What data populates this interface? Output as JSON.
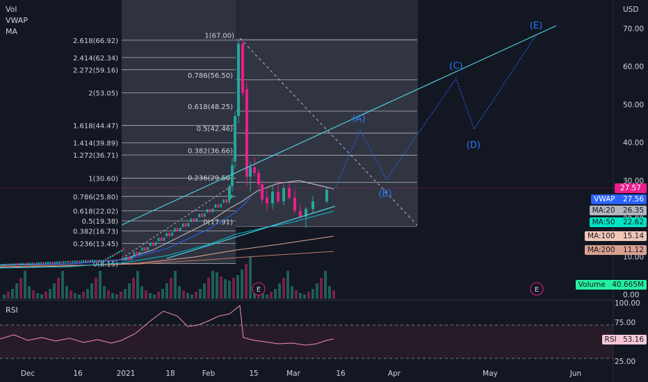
{
  "legend": {
    "vol": "Vol",
    "vwap": "VWAP",
    "ma": "MA",
    "rsi": "RSI"
  },
  "currency": "USD",
  "price_axis_ticks": [
    "70.00",
    "60.00",
    "50.00",
    "40.00",
    "30.00",
    "20.00",
    "10.00",
    "0.00"
  ],
  "rsi_axis_ticks": [
    "100.00",
    "75.00",
    "25.00"
  ],
  "time_axis": [
    "Dec",
    "16",
    "2021",
    "18",
    "Feb",
    "15",
    "Mar",
    "16",
    "Apr",
    "May",
    "Jun"
  ],
  "badges": {
    "last_price": "27.57",
    "vwap_label": "VWAP",
    "vwap_value": "27.56",
    "ma20_label": "MA:20",
    "ma20_value": "26.35",
    "ma50_label": "MA:50",
    "ma50_value": "22.62",
    "ma100_label": "MA:100",
    "ma100_value": "15.14",
    "ma200_label": "MA:200",
    "ma200_value": "11.12",
    "volume_label": "Volume",
    "volume_value": "40.665M",
    "rsi_label": "RSI",
    "rsi_value": "53.16"
  },
  "colors": {
    "background": "#131722",
    "up": "#26a69a",
    "down": "#e91e8c",
    "wave_projection": "#2962ff",
    "channel": "#4dd0e1",
    "fib_line": "#b2b5be",
    "vwap": "#2962ff",
    "ma20": "#b2b5be",
    "ma50": "#00bcd4",
    "ma100": "#e0a890",
    "ma200": "#c67766",
    "rsi_line": "#f48fb1",
    "last_price": "#e91e8c",
    "volume_badge": "#26f0a0"
  },
  "chart_data": [
    {
      "type": "candlestick",
      "y_axis": {
        "range": [
          0,
          74
        ],
        "unit": "USD"
      },
      "candles": [
        {
          "t": "2021-01-27",
          "o": 25.0,
          "h": 29.0,
          "l": 24.0,
          "c": 28.5
        },
        {
          "t": "2021-01-29",
          "o": 28.5,
          "h": 36.0,
          "l": 27.0,
          "c": 34.0
        },
        {
          "t": "2021-02-01",
          "o": 35.0,
          "h": 48.0,
          "l": 33.0,
          "c": 47.0
        },
        {
          "t": "2021-02-02",
          "o": 47.0,
          "h": 67.0,
          "l": 45.0,
          "c": 66.0
        },
        {
          "t": "2021-02-03",
          "o": 66.0,
          "h": 67.0,
          "l": 52.0,
          "c": 53.0
        },
        {
          "t": "2021-02-04",
          "o": 54.0,
          "h": 56.0,
          "l": 28.5,
          "c": 31.0
        },
        {
          "t": "2021-02-05",
          "o": 31.0,
          "h": 35.0,
          "l": 27.0,
          "c": 33.5
        },
        {
          "t": "2021-02-08",
          "o": 33.5,
          "h": 36.0,
          "l": 31.0,
          "c": 32.0
        },
        {
          "t": "2021-02-09",
          "o": 32.0,
          "h": 33.0,
          "l": 28.0,
          "c": 29.0
        },
        {
          "t": "2021-02-11",
          "o": 29.0,
          "h": 30.0,
          "l": 24.0,
          "c": 25.0
        },
        {
          "t": "2021-02-16",
          "o": 25.5,
          "h": 27.5,
          "l": 22.0,
          "c": 24.0
        },
        {
          "t": "2021-02-18",
          "o": 24.0,
          "h": 28.5,
          "l": 22.5,
          "c": 27.0
        },
        {
          "t": "2021-02-22",
          "o": 27.0,
          "h": 30.0,
          "l": 24.0,
          "c": 24.5
        },
        {
          "t": "2021-02-24",
          "o": 24.5,
          "h": 29.0,
          "l": 23.5,
          "c": 28.0
        },
        {
          "t": "2021-02-26",
          "o": 28.0,
          "h": 29.5,
          "l": 25.0,
          "c": 25.5
        },
        {
          "t": "2021-03-02",
          "o": 25.5,
          "h": 27.5,
          "l": 21.5,
          "c": 22.0
        },
        {
          "t": "2021-03-04",
          "o": 22.0,
          "h": 24.0,
          "l": 20.0,
          "c": 20.5
        },
        {
          "t": "2021-03-08",
          "o": 20.5,
          "h": 23.0,
          "l": 17.5,
          "c": 22.5
        },
        {
          "t": "2021-03-10",
          "o": 22.5,
          "h": 26.0,
          "l": 21.5,
          "c": 24.5
        },
        {
          "t": "2021-03-12",
          "o": 24.5,
          "h": 28.0,
          "l": 24.0,
          "c": 27.57
        }
      ],
      "elliott_wave_projection": [
        {
          "label": "(A)",
          "t": "2021-03-22",
          "y": 43.0
        },
        {
          "label": "(B)",
          "t": "2021-03-30",
          "y": 29.0
        },
        {
          "label": "(C)",
          "t": "2021-04-27",
          "y": 57.0
        },
        {
          "label": "(D)",
          "t": "2021-05-04",
          "y": 43.0
        },
        {
          "label": "(E)",
          "t": "2021-05-26",
          "y": 68.0
        }
      ],
      "fib_retracement_left": [
        {
          "label": "0(8.15)",
          "level": 0,
          "price": 8.15
        },
        {
          "label": "0.236(13.45)",
          "level": 0.236,
          "price": 13.45
        },
        {
          "label": "0.382(16.73)",
          "level": 0.382,
          "price": 16.73
        },
        {
          "label": "0.5(19.38)",
          "level": 0.5,
          "price": 19.38
        },
        {
          "label": "0.618(22.02)",
          "level": 0.618,
          "price": 22.02
        },
        {
          "label": "0.786(25.80)",
          "level": 0.786,
          "price": 25.8
        },
        {
          "label": "1(30.60)",
          "level": 1,
          "price": 30.6
        },
        {
          "label": "1.272(36.71)",
          "level": 1.272,
          "price": 36.71
        },
        {
          "label": "1.414(39.89)",
          "level": 1.414,
          "price": 39.89
        },
        {
          "label": "1.618(44.47)",
          "level": 1.618,
          "price": 44.47
        },
        {
          "label": "2(53.05)",
          "level": 2,
          "price": 53.05
        },
        {
          "label": "2.272(59.16)",
          "level": 2.272,
          "price": 59.16
        },
        {
          "label": "2.414(62.34)",
          "level": 2.414,
          "price": 62.34
        },
        {
          "label": "2.618(66.92)",
          "level": 2.618,
          "price": 66.92
        }
      ],
      "fib_retracement_right": [
        {
          "label": "0(17.91)",
          "level": 0,
          "price": 17.91
        },
        {
          "label": "0.236(29.50)",
          "level": 0.236,
          "price": 29.5
        },
        {
          "label": "0.382(36.66)",
          "level": 0.382,
          "price": 36.66
        },
        {
          "label": "0.5(42.46)",
          "level": 0.5,
          "price": 42.46
        },
        {
          "label": "0.618(48.25)",
          "level": 0.618,
          "price": 48.25
        },
        {
          "label": "0.786(56.50)",
          "level": 0.786,
          "price": 56.5
        },
        {
          "label": "1(67.00)",
          "level": 1,
          "price": 67.0
        }
      ],
      "event_markers": [
        "E",
        "E"
      ],
      "moving_averages_last": {
        "VWAP": 27.56,
        "MA:20": 26.35,
        "MA:50": 22.62,
        "MA:100": 15.14,
        "MA:200": 11.12
      },
      "volume_last": "40.665M"
    },
    {
      "type": "line",
      "name": "RSI",
      "y_axis": {
        "range": [
          25,
          100
        ],
        "bands": [
          30,
          70
        ]
      },
      "last_value": 53.16
    }
  ]
}
